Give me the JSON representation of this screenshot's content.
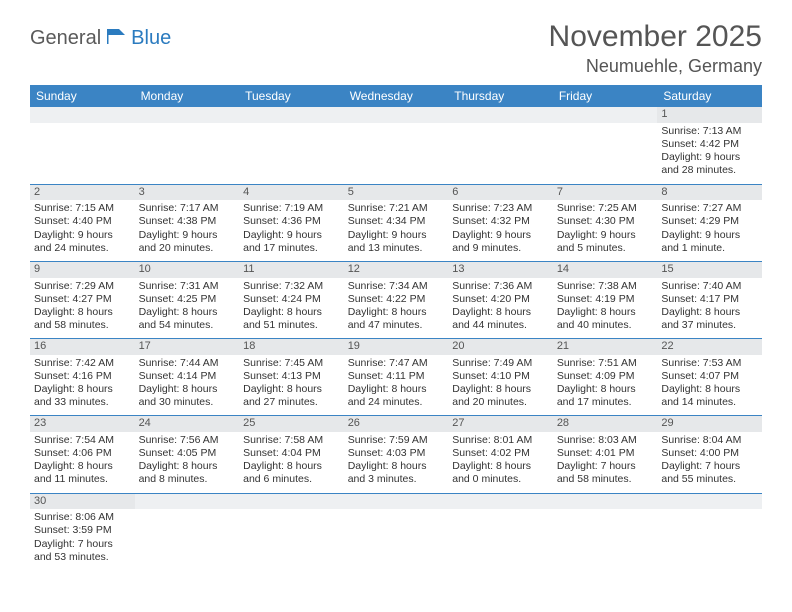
{
  "logo": {
    "general": "General",
    "blue": "Blue"
  },
  "title": "November 2025",
  "location": "Neumuehle, Germany",
  "colors": {
    "header_bg": "#3b84c4",
    "header_text": "#ffffff",
    "daynum_bg": "#e6e8ea",
    "blank_bg": "#eef0f2",
    "border": "#3b84c4",
    "text": "#333333",
    "title_text": "#555555"
  },
  "typography": {
    "title_fontsize": 30,
    "location_fontsize": 18,
    "dow_fontsize": 12,
    "cell_fontsize": 10.5
  },
  "daysOfWeek": [
    "Sunday",
    "Monday",
    "Tuesday",
    "Wednesday",
    "Thursday",
    "Friday",
    "Saturday"
  ],
  "weeks": [
    [
      null,
      null,
      null,
      null,
      null,
      null,
      {
        "n": "1",
        "sr": "Sunrise: 7:13 AM",
        "ss": "Sunset: 4:42 PM",
        "d1": "Daylight: 9 hours",
        "d2": "and 28 minutes."
      }
    ],
    [
      {
        "n": "2",
        "sr": "Sunrise: 7:15 AM",
        "ss": "Sunset: 4:40 PM",
        "d1": "Daylight: 9 hours",
        "d2": "and 24 minutes."
      },
      {
        "n": "3",
        "sr": "Sunrise: 7:17 AM",
        "ss": "Sunset: 4:38 PM",
        "d1": "Daylight: 9 hours",
        "d2": "and 20 minutes."
      },
      {
        "n": "4",
        "sr": "Sunrise: 7:19 AM",
        "ss": "Sunset: 4:36 PM",
        "d1": "Daylight: 9 hours",
        "d2": "and 17 minutes."
      },
      {
        "n": "5",
        "sr": "Sunrise: 7:21 AM",
        "ss": "Sunset: 4:34 PM",
        "d1": "Daylight: 9 hours",
        "d2": "and 13 minutes."
      },
      {
        "n": "6",
        "sr": "Sunrise: 7:23 AM",
        "ss": "Sunset: 4:32 PM",
        "d1": "Daylight: 9 hours",
        "d2": "and 9 minutes."
      },
      {
        "n": "7",
        "sr": "Sunrise: 7:25 AM",
        "ss": "Sunset: 4:30 PM",
        "d1": "Daylight: 9 hours",
        "d2": "and 5 minutes."
      },
      {
        "n": "8",
        "sr": "Sunrise: 7:27 AM",
        "ss": "Sunset: 4:29 PM",
        "d1": "Daylight: 9 hours",
        "d2": "and 1 minute."
      }
    ],
    [
      {
        "n": "9",
        "sr": "Sunrise: 7:29 AM",
        "ss": "Sunset: 4:27 PM",
        "d1": "Daylight: 8 hours",
        "d2": "and 58 minutes."
      },
      {
        "n": "10",
        "sr": "Sunrise: 7:31 AM",
        "ss": "Sunset: 4:25 PM",
        "d1": "Daylight: 8 hours",
        "d2": "and 54 minutes."
      },
      {
        "n": "11",
        "sr": "Sunrise: 7:32 AM",
        "ss": "Sunset: 4:24 PM",
        "d1": "Daylight: 8 hours",
        "d2": "and 51 minutes."
      },
      {
        "n": "12",
        "sr": "Sunrise: 7:34 AM",
        "ss": "Sunset: 4:22 PM",
        "d1": "Daylight: 8 hours",
        "d2": "and 47 minutes."
      },
      {
        "n": "13",
        "sr": "Sunrise: 7:36 AM",
        "ss": "Sunset: 4:20 PM",
        "d1": "Daylight: 8 hours",
        "d2": "and 44 minutes."
      },
      {
        "n": "14",
        "sr": "Sunrise: 7:38 AM",
        "ss": "Sunset: 4:19 PM",
        "d1": "Daylight: 8 hours",
        "d2": "and 40 minutes."
      },
      {
        "n": "15",
        "sr": "Sunrise: 7:40 AM",
        "ss": "Sunset: 4:17 PM",
        "d1": "Daylight: 8 hours",
        "d2": "and 37 minutes."
      }
    ],
    [
      {
        "n": "16",
        "sr": "Sunrise: 7:42 AM",
        "ss": "Sunset: 4:16 PM",
        "d1": "Daylight: 8 hours",
        "d2": "and 33 minutes."
      },
      {
        "n": "17",
        "sr": "Sunrise: 7:44 AM",
        "ss": "Sunset: 4:14 PM",
        "d1": "Daylight: 8 hours",
        "d2": "and 30 minutes."
      },
      {
        "n": "18",
        "sr": "Sunrise: 7:45 AM",
        "ss": "Sunset: 4:13 PM",
        "d1": "Daylight: 8 hours",
        "d2": "and 27 minutes."
      },
      {
        "n": "19",
        "sr": "Sunrise: 7:47 AM",
        "ss": "Sunset: 4:11 PM",
        "d1": "Daylight: 8 hours",
        "d2": "and 24 minutes."
      },
      {
        "n": "20",
        "sr": "Sunrise: 7:49 AM",
        "ss": "Sunset: 4:10 PM",
        "d1": "Daylight: 8 hours",
        "d2": "and 20 minutes."
      },
      {
        "n": "21",
        "sr": "Sunrise: 7:51 AM",
        "ss": "Sunset: 4:09 PM",
        "d1": "Daylight: 8 hours",
        "d2": "and 17 minutes."
      },
      {
        "n": "22",
        "sr": "Sunrise: 7:53 AM",
        "ss": "Sunset: 4:07 PM",
        "d1": "Daylight: 8 hours",
        "d2": "and 14 minutes."
      }
    ],
    [
      {
        "n": "23",
        "sr": "Sunrise: 7:54 AM",
        "ss": "Sunset: 4:06 PM",
        "d1": "Daylight: 8 hours",
        "d2": "and 11 minutes."
      },
      {
        "n": "24",
        "sr": "Sunrise: 7:56 AM",
        "ss": "Sunset: 4:05 PM",
        "d1": "Daylight: 8 hours",
        "d2": "and 8 minutes."
      },
      {
        "n": "25",
        "sr": "Sunrise: 7:58 AM",
        "ss": "Sunset: 4:04 PM",
        "d1": "Daylight: 8 hours",
        "d2": "and 6 minutes."
      },
      {
        "n": "26",
        "sr": "Sunrise: 7:59 AM",
        "ss": "Sunset: 4:03 PM",
        "d1": "Daylight: 8 hours",
        "d2": "and 3 minutes."
      },
      {
        "n": "27",
        "sr": "Sunrise: 8:01 AM",
        "ss": "Sunset: 4:02 PM",
        "d1": "Daylight: 8 hours",
        "d2": "and 0 minutes."
      },
      {
        "n": "28",
        "sr": "Sunrise: 8:03 AM",
        "ss": "Sunset: 4:01 PM",
        "d1": "Daylight: 7 hours",
        "d2": "and 58 minutes."
      },
      {
        "n": "29",
        "sr": "Sunrise: 8:04 AM",
        "ss": "Sunset: 4:00 PM",
        "d1": "Daylight: 7 hours",
        "d2": "and 55 minutes."
      }
    ],
    [
      {
        "n": "30",
        "sr": "Sunrise: 8:06 AM",
        "ss": "Sunset: 3:59 PM",
        "d1": "Daylight: 7 hours",
        "d2": "and 53 minutes."
      },
      null,
      null,
      null,
      null,
      null,
      null
    ]
  ]
}
